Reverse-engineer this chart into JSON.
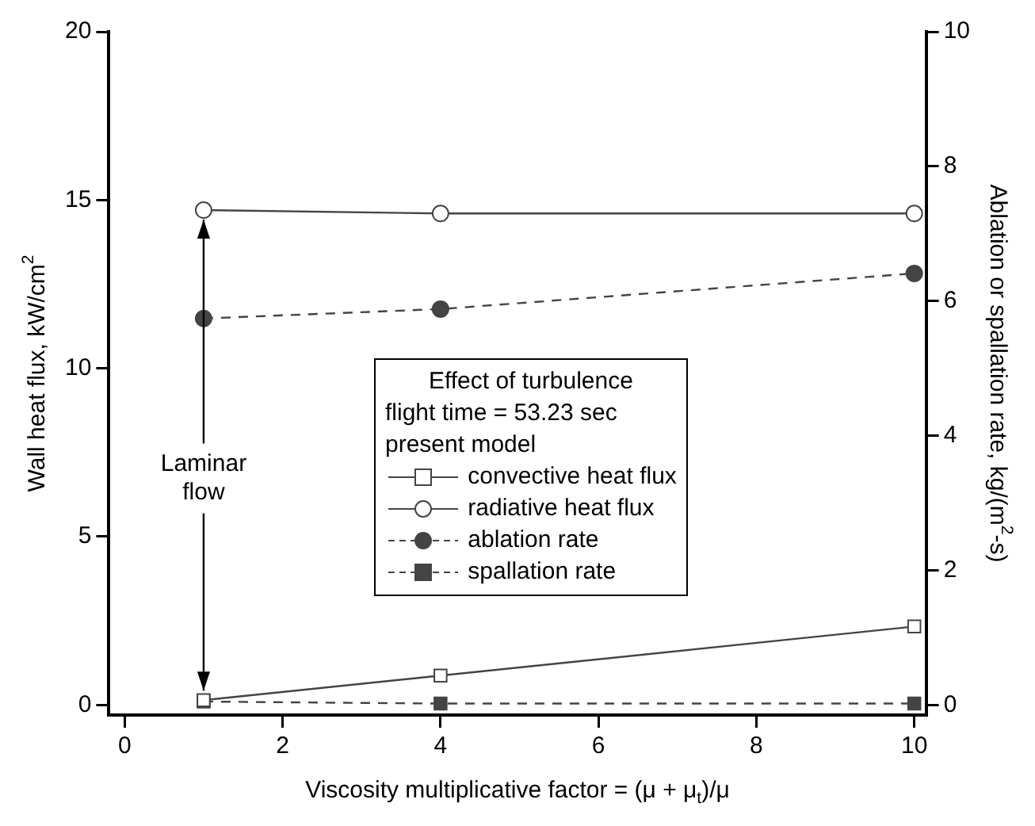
{
  "chart_data": {
    "type": "line",
    "xlabel": "Viscosity multiplicative factor = (μ + μ$_{t}$)/μ",
    "ylabel": "Wall heat flux, kW/cm$^{2}$",
    "y2label": "Ablation or spallation rate, kg/(m$^{2}$-s)",
    "legend_title": "Effect of turbulence\nflight time = 53.23 sec\npresent model",
    "legend": "center right",
    "grid": false,
    "x": [
      1,
      4,
      10
    ],
    "xlim": [
      -0.2,
      10.15
    ],
    "xticks": [
      0,
      2,
      4,
      6,
      8,
      10
    ],
    "ylim": [
      -0.3,
      20
    ],
    "yticks": [
      0,
      5,
      10,
      15,
      20
    ],
    "y2lim": [
      -0.15,
      10
    ],
    "y2ticks": [
      0,
      2,
      4,
      6,
      8,
      10
    ],
    "series": [
      {
        "name": "convective heat flux",
        "color": "#444444",
        "values": [
          0.14,
          0.87,
          2.33
        ],
        "marker": "square",
        "line_style": "solid"
      },
      {
        "name": "radiative heat flux",
        "color": "#444444",
        "values": [
          14.7,
          14.6,
          14.6
        ],
        "marker": "circle",
        "line_style": "solid"
      },
      {
        "name": "ablation rate",
        "color": "#444444",
        "values": [
          5.74,
          5.88,
          6.41
        ],
        "marker": "circle",
        "line_style": "dashed",
        "axis": "y2"
      },
      {
        "name": "spallation rate",
        "color": "#444444",
        "values": [
          0.05,
          0.02,
          0.02
        ],
        "marker": "square",
        "line_style": "dashed",
        "axis": "y2"
      }
    ],
    "annotations": [
      {
        "text": "Laminar flow",
        "x": 1,
        "y": 14.7
      }
    ]
  }
}
